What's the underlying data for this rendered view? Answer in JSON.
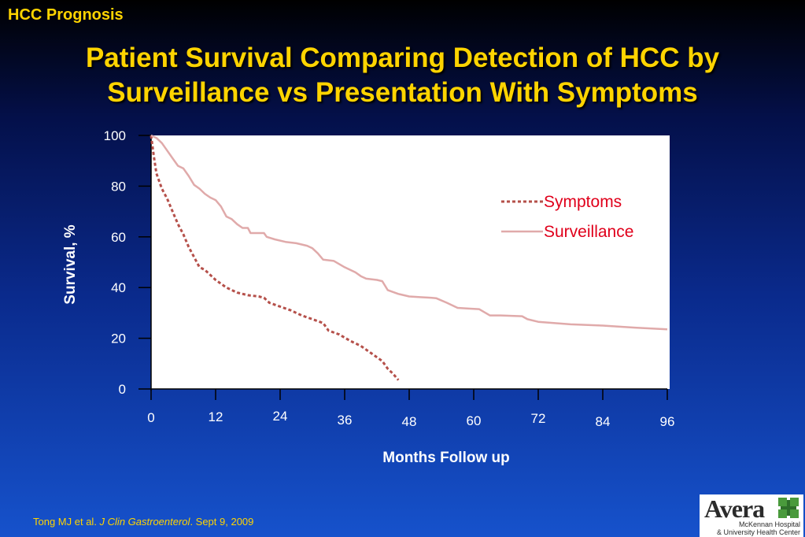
{
  "slide": {
    "section_label": "HCC Prognosis",
    "title_line1": "Patient Survival Comparing Detection of HCC by",
    "title_line2": "Surveillance vs Presentation With Symptoms"
  },
  "footer": {
    "prefix": "Tong MJ et al. ",
    "journal": "J Clin Gastroenterol",
    "suffix": ". Sept 9, 2009"
  },
  "logo": {
    "name": "Avera",
    "line1": "McKennan Hospital",
    "line2": "& University Health Center"
  },
  "colors": {
    "title": "#ffd400",
    "legend_text": "#e0001b",
    "symptoms_line": "#b5504a",
    "surveillance_line": "#e0aaaa"
  },
  "chart_data": {
    "type": "line",
    "xlabel": "Months Follow up",
    "ylabel": "Survival, %",
    "xlim": [
      0,
      96
    ],
    "ylim": [
      0,
      100
    ],
    "x_ticks": [
      0,
      12,
      24,
      36,
      48,
      60,
      72,
      84,
      96
    ],
    "y_ticks": [
      0,
      20,
      40,
      60,
      80,
      100
    ],
    "legend_position": "top-right",
    "grid": false,
    "series": [
      {
        "name": "Symptoms",
        "style": "dashed",
        "points": [
          [
            0,
            100
          ],
          [
            0.5,
            92
          ],
          [
            1,
            85
          ],
          [
            2,
            79
          ],
          [
            3,
            75
          ],
          [
            4,
            70
          ],
          [
            5,
            65
          ],
          [
            6,
            61
          ],
          [
            7,
            56
          ],
          [
            8,
            52
          ],
          [
            9,
            48
          ],
          [
            10,
            47
          ],
          [
            12,
            43
          ],
          [
            14,
            40
          ],
          [
            16,
            38
          ],
          [
            18,
            37
          ],
          [
            20,
            36.5
          ],
          [
            21,
            36
          ],
          [
            22,
            34
          ],
          [
            24,
            32.5
          ],
          [
            26,
            31
          ],
          [
            28,
            29
          ],
          [
            30,
            27.5
          ],
          [
            32,
            26
          ],
          [
            33,
            23
          ],
          [
            35,
            21.5
          ],
          [
            37,
            19
          ],
          [
            39,
            17
          ],
          [
            41,
            14
          ],
          [
            43,
            11
          ],
          [
            44,
            8
          ],
          [
            45,
            6
          ],
          [
            46,
            3.5
          ]
        ]
      },
      {
        "name": "Surveillance",
        "style": "solid",
        "points": [
          [
            0,
            100
          ],
          [
            1,
            99
          ],
          [
            2,
            97
          ],
          [
            3,
            94
          ],
          [
            4,
            91
          ],
          [
            5,
            88
          ],
          [
            6,
            87
          ],
          [
            7,
            84
          ],
          [
            8,
            80.5
          ],
          [
            9,
            79
          ],
          [
            10,
            77
          ],
          [
            11,
            75.5
          ],
          [
            12,
            74.5
          ],
          [
            13,
            72
          ],
          [
            14,
            68
          ],
          [
            15,
            67
          ],
          [
            16,
            65
          ],
          [
            17,
            63.5
          ],
          [
            18,
            63.5
          ],
          [
            18.5,
            61.5
          ],
          [
            20,
            61.5
          ],
          [
            21,
            61.5
          ],
          [
            21.5,
            60
          ],
          [
            23,
            59
          ],
          [
            25,
            58
          ],
          [
            27,
            57.5
          ],
          [
            29,
            56.5
          ],
          [
            30,
            55.5
          ],
          [
            31,
            53.5
          ],
          [
            32,
            51
          ],
          [
            34,
            50.5
          ],
          [
            36,
            48
          ],
          [
            38,
            46
          ],
          [
            39,
            44.5
          ],
          [
            40,
            43.5
          ],
          [
            42,
            43
          ],
          [
            43,
            42.5
          ],
          [
            44,
            39
          ],
          [
            46,
            37.5
          ],
          [
            48,
            36.5
          ],
          [
            50,
            36.2
          ],
          [
            52,
            36
          ],
          [
            53,
            35.8
          ],
          [
            55,
            34
          ],
          [
            57,
            32
          ],
          [
            59,
            31.7
          ],
          [
            61,
            31.5
          ],
          [
            63,
            29
          ],
          [
            65,
            29
          ],
          [
            69,
            28.7
          ],
          [
            70,
            27.5
          ],
          [
            72,
            26.5
          ],
          [
            78,
            25.5
          ],
          [
            84,
            25
          ],
          [
            90,
            24.2
          ],
          [
            96,
            23.5
          ]
        ]
      }
    ]
  }
}
